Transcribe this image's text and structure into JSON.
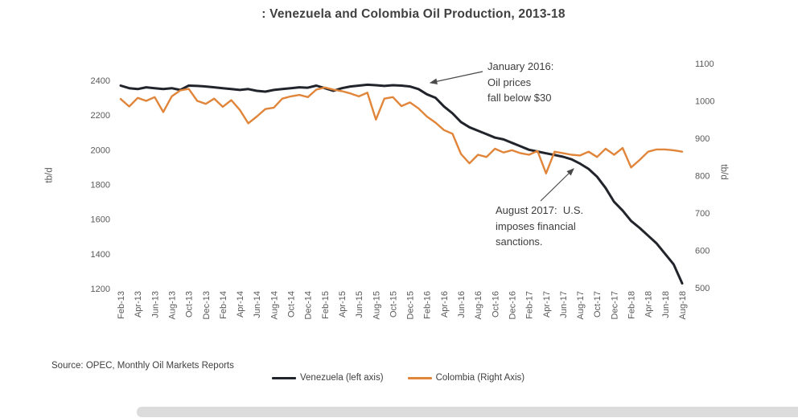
{
  "chart_data": {
    "type": "line",
    "title": ": Venezuela and Colombia Oil Production, 2013-18",
    "months": 67,
    "x_tick_labels": [
      "Feb-13",
      "Apr-13",
      "Jun-13",
      "Aug-13",
      "Oct-13",
      "Dec-13",
      "Feb-14",
      "Apr-14",
      "Jun-14",
      "Aug-14",
      "Oct-14",
      "Dec-14",
      "Feb-15",
      "Apr-15",
      "Jun-15",
      "Aug-15",
      "Oct-15",
      "Dec-15",
      "Feb-16",
      "Apr-16",
      "Jun-16",
      "Aug-16",
      "Oct-16",
      "Dec-16",
      "Feb-17",
      "Apr-17",
      "Jun-17",
      "Aug-17",
      "Oct-17",
      "Dec-17",
      "Feb-18",
      "Apr-18",
      "Jun-18",
      "Aug-18"
    ],
    "left_axis": {
      "label": "tb/d",
      "max": 2400,
      "min": 1200,
      "ticks": [
        2400,
        2200,
        2000,
        1800,
        1600,
        1400,
        1200
      ]
    },
    "right_axis": {
      "label": "tb/d",
      "max": 1100,
      "min": 500,
      "ticks": [
        1100,
        1000,
        900,
        800,
        700,
        600,
        500
      ]
    },
    "series": [
      {
        "name": "Venezuela (left axis)",
        "axis": "left",
        "color": "#22242c",
        "values": [
          2370,
          2355,
          2350,
          2360,
          2355,
          2350,
          2355,
          2345,
          2370,
          2368,
          2365,
          2360,
          2355,
          2350,
          2345,
          2350,
          2340,
          2335,
          2345,
          2350,
          2355,
          2360,
          2358,
          2370,
          2355,
          2340,
          2355,
          2365,
          2370,
          2375,
          2372,
          2368,
          2372,
          2370,
          2365,
          2350,
          2320,
          2300,
          2250,
          2210,
          2160,
          2130,
          2110,
          2090,
          2070,
          2060,
          2040,
          2020,
          2000,
          1990,
          1980,
          1970,
          1960,
          1945,
          1920,
          1890,
          1845,
          1780,
          1700,
          1650,
          1590,
          1550,
          1505,
          1460,
          1400,
          1340,
          1230
        ]
      },
      {
        "name": "Colombia (Right Axis)",
        "axis": "right",
        "color": "#e0853a",
        "values": [
          1005,
          985,
          1008,
          1000,
          1010,
          970,
          1012,
          1028,
          1032,
          1000,
          992,
          1006,
          984,
          1002,
          976,
          940,
          958,
          978,
          982,
          1006,
          1012,
          1016,
          1010,
          1030,
          1036,
          1030,
          1026,
          1020,
          1012,
          1022,
          950,
          1006,
          1010,
          986,
          996,
          980,
          958,
          942,
          922,
          912,
          858,
          833,
          856,
          850,
          872,
          862,
          868,
          860,
          856,
          866,
          806,
          864,
          860,
          856,
          854,
          864,
          850,
          872,
          856,
          874,
          822,
          842,
          864,
          870,
          870,
          868,
          864
        ]
      }
    ],
    "annotations": [
      {
        "id": "jan16",
        "lines": [
          "January 2016:",
          "Oil prices",
          "fall below $30"
        ]
      },
      {
        "id": "aug17",
        "lines": [
          "August 2017:  U.S.",
          "imposes financial",
          "sanctions."
        ]
      }
    ],
    "source": "Source: OPEC, Monthly Oil Markets Reports",
    "legend_position": "bottom",
    "grid": false
  }
}
